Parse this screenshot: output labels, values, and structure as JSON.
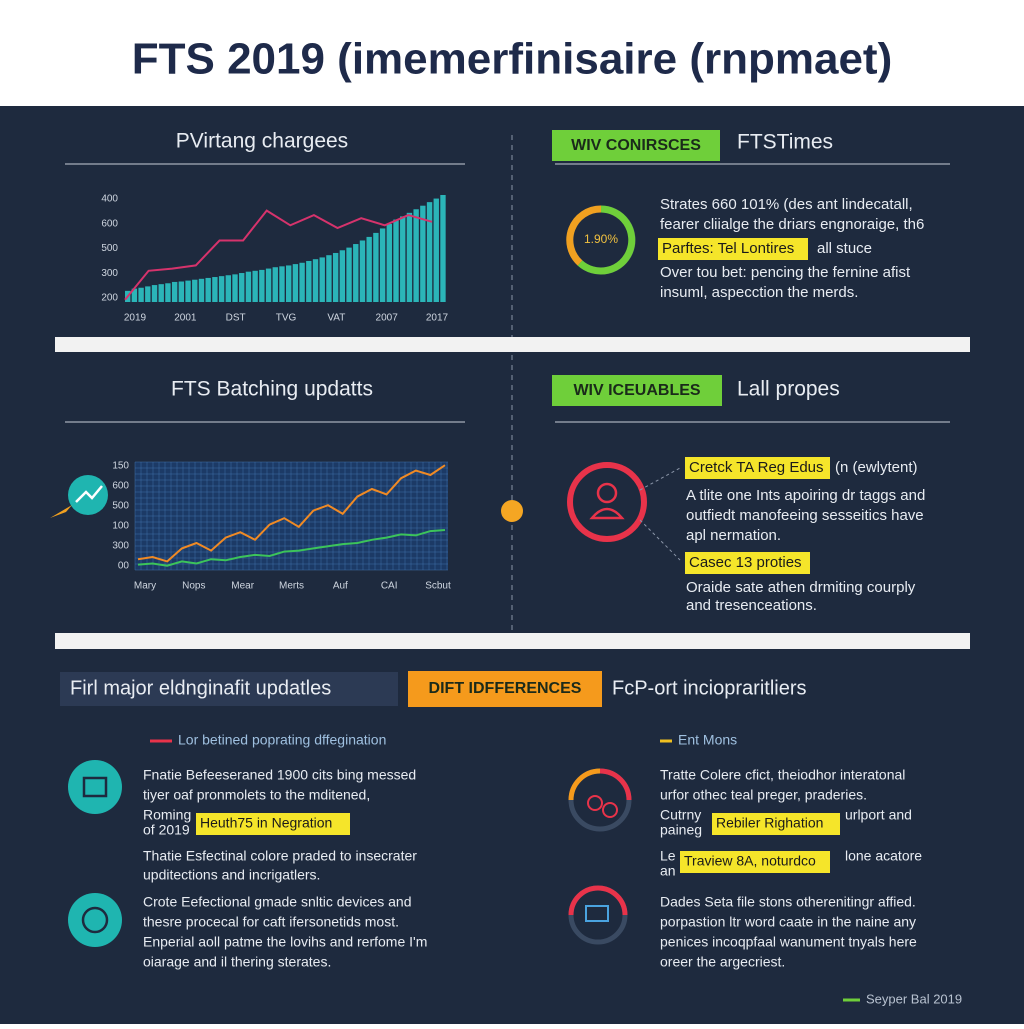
{
  "header": {
    "title": "FTS 2019 (imemerfinisaire (rnpmaet)"
  },
  "panel1": {
    "title": "PVirtang chargees",
    "chart": {
      "type": "bar",
      "color": "#2bb5b8",
      "ylim": [
        180,
        420
      ],
      "y_labels": [
        "400",
        "600",
        "500",
        "300",
        "200"
      ],
      "x_labels": [
        "2019",
        "2001",
        "DST",
        "TVG",
        "VAT",
        "2007",
        "2017"
      ],
      "values": [
        205,
        210,
        212,
        215,
        218,
        220,
        222,
        225,
        226,
        228,
        230,
        232,
        234,
        236,
        238,
        240,
        242,
        245,
        248,
        250,
        252,
        255,
        258,
        260,
        262,
        265,
        268,
        272,
        276,
        280,
        285,
        290,
        296,
        302,
        310,
        318,
        326,
        335,
        345,
        355,
        365,
        372,
        380,
        388,
        396,
        404,
        412,
        420
      ],
      "line": {
        "color": "#d6336c",
        "values": [
          185,
          250,
          255,
          262,
          318,
          318,
          385,
          352,
          375,
          346,
          368,
          352,
          375,
          360
        ]
      }
    }
  },
  "panel2": {
    "badge": "WIV CONIRSCES",
    "title": "FTSTimes",
    "donut_label": "1.90%",
    "lines": [
      "Strates 660 101% (des ant lindecatall,",
      "fearer cliialge the driars engnoraige, th6"
    ],
    "highlight": "Parftes: Tel Lontires",
    "highlight_after": "all stuce",
    "lines_after": [
      "Over tou bet: pencing the fernine afist",
      "insuml, aspecction the merds."
    ]
  },
  "panel3": {
    "title": "FTS Batching updatts",
    "chart": {
      "type": "line",
      "ylim": [
        0,
        100
      ],
      "y_labels": [
        "150",
        "600",
        "500",
        "100",
        "300",
        "00"
      ],
      "x_labels": [
        "Mary",
        "Nops",
        "Mear",
        "Merts",
        "Auf",
        "CAI",
        "Scbut"
      ],
      "series": [
        {
          "color": "#f08a24",
          "values": [
            10,
            12,
            8,
            20,
            25,
            18,
            30,
            35,
            28,
            42,
            48,
            40,
            55,
            60,
            52,
            68,
            75,
            70,
            85,
            92,
            88,
            97
          ]
        },
        {
          "color": "#3cc45a",
          "values": [
            5,
            6,
            4,
            8,
            6,
            10,
            9,
            12,
            14,
            13,
            17,
            18,
            20,
            22,
            24,
            25,
            28,
            30,
            33,
            32,
            36,
            37
          ]
        }
      ]
    }
  },
  "panel4": {
    "badge": "WIV ICEUABLES",
    "title": "Lall propes",
    "highlight1": "Cretck TA Reg Edus",
    "highlight1_after": "(n (ewlytent)",
    "lines": [
      "A tlite one Ints apoiring dr taggs and",
      "outfiedt manofeeing sesseitics have",
      "apl nermation."
    ],
    "highlight2": "Casec 13 proties",
    "lines_after": [
      "Oraide sate athen drmiting courply",
      "and tresenceations."
    ]
  },
  "section3": {
    "banner": "Firl major eldnginafit updatles",
    "badge": "DIFT IDFFERENCES",
    "title": "FcP-ort inciopraritliers",
    "left": {
      "subheader": "Lor betined poprating dffegination",
      "block1": [
        "Fnatie Befeeseraned 1900 cits bing messed",
        "tiyer oaf pronmolets to the mditened,",
        "Roming",
        "of 2019"
      ],
      "highlight": "Heuth75 in Negration",
      "block2": [
        "Thatie Esfectinal colore praded to insecrater",
        "upditections and incrigatlers."
      ],
      "block3": [
        "Crote Eefectional gmade snltic devices and",
        "thesre procecal for caft ifersonetids most.",
        "Enperial aoll patme the lovihs and rerfome I'm",
        "oiarage and il thering sterates."
      ]
    },
    "right": {
      "subheader": "Ent Mons",
      "block1": [
        "Tratte Colere cfict, theiodhor interatonal",
        "urfor othec teal preger, praderies.",
        "Cutrny",
        "urlport and",
        "paineg"
      ],
      "highlight1": "Rebiler Righation",
      "block2": [
        "Le",
        "an",
        "lone acatore"
      ],
      "highlight2": "Traview 8A, noturdco",
      "block3": [
        "Dades Seta file stons otherenitingr affied.",
        "porpastion ltr word caate in the naine any",
        "penices incoqpfaal wanument tnyals here",
        "oreer the argecriest."
      ]
    }
  },
  "footer": {
    "text": "Seyper Bal 2019"
  }
}
